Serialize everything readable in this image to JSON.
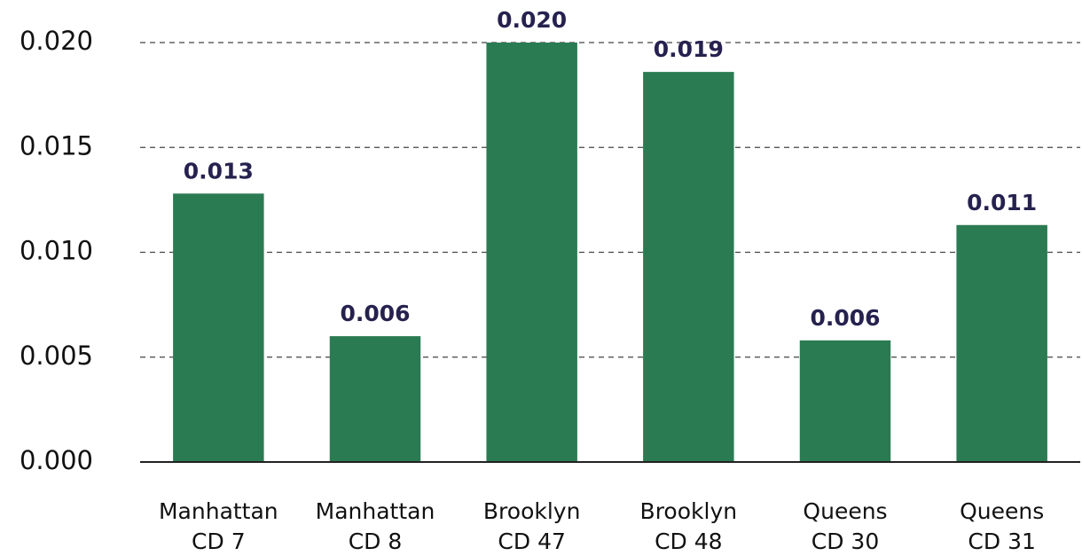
{
  "chart_data": {
    "type": "bar",
    "categories": [
      [
        "Manhattan",
        "CD 7"
      ],
      [
        "Manhattan",
        "CD 8"
      ],
      [
        "Brooklyn",
        "CD 47"
      ],
      [
        "Brooklyn",
        "CD 48"
      ],
      [
        "Queens",
        "CD 30"
      ],
      [
        "Queens",
        "CD 31"
      ]
    ],
    "values": [
      0.0128,
      0.006,
      0.02,
      0.0186,
      0.0058,
      0.0113
    ],
    "value_labels": [
      "0.013",
      "0.006",
      "0.020",
      "0.019",
      "0.006",
      "0.011"
    ],
    "color": "#2b7b52",
    "ylim": [
      0,
      0.02
    ],
    "yticks": [
      {
        "value": 0,
        "label": "0.000"
      },
      {
        "value": 0.005,
        "label": "0.005"
      },
      {
        "value": 0.01,
        "label": "0.010"
      },
      {
        "value": 0.015,
        "label": "0.015"
      },
      {
        "value": 0.02,
        "label": "0.020"
      }
    ],
    "grid": true
  }
}
